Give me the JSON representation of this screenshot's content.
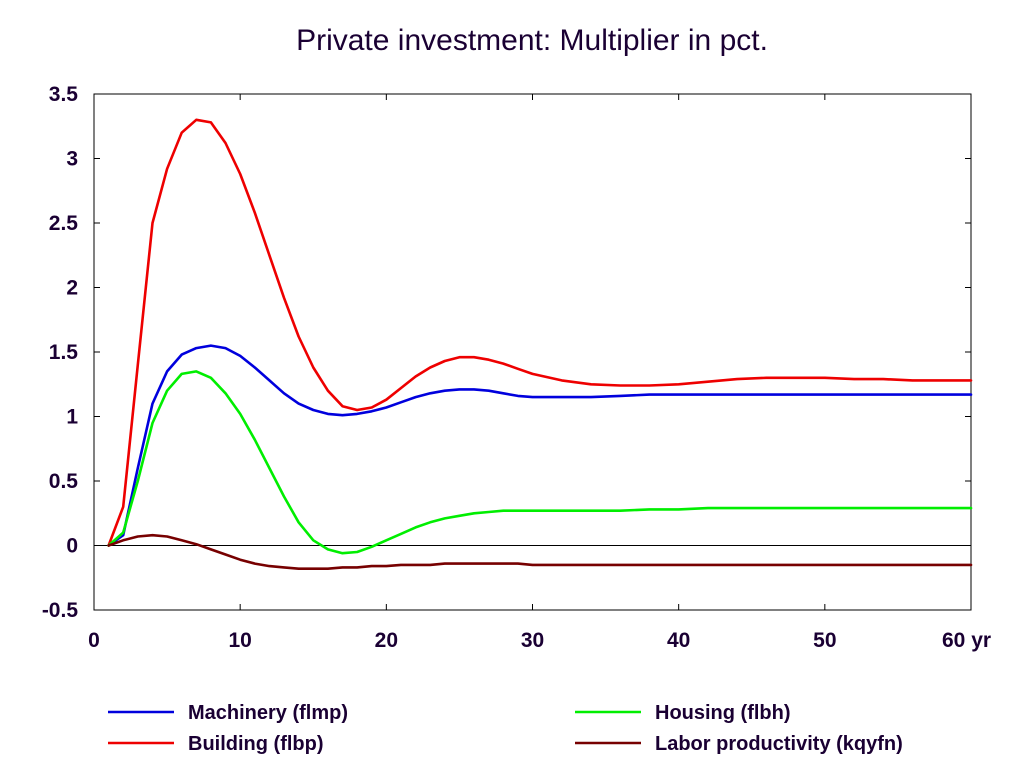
{
  "chart_data": {
    "type": "line",
    "title": "Private investment: Multiplier in pct.",
    "xlabel": "",
    "ylabel": "",
    "xlim": [
      0,
      60
    ],
    "ylim": [
      -0.5,
      3.5
    ],
    "x_ticks": [
      0,
      10,
      20,
      30,
      40,
      50,
      60
    ],
    "x_tick_labels": [
      "0",
      "10",
      "20",
      "30",
      "40",
      "50",
      "60 yr"
    ],
    "y_ticks": [
      -0.5,
      0,
      0.5,
      1,
      1.5,
      2,
      2.5,
      3,
      3.5
    ],
    "y_tick_labels": [
      "-0.5",
      "0",
      "0.5",
      "1",
      "1.5",
      "2",
      "2.5",
      "3",
      "3.5"
    ],
    "grid": false,
    "zero_line": true,
    "legend_position": "bottom",
    "x": [
      1,
      2,
      3,
      4,
      5,
      6,
      7,
      8,
      9,
      10,
      11,
      12,
      13,
      14,
      15,
      16,
      17,
      18,
      19,
      20,
      21,
      22,
      23,
      24,
      25,
      26,
      27,
      28,
      29,
      30,
      32,
      34,
      36,
      38,
      40,
      42,
      44,
      46,
      48,
      50,
      52,
      54,
      56,
      58,
      60
    ],
    "series": [
      {
        "name": "Machinery (flmp)",
        "color": "#0000dd",
        "values": [
          0,
          0.08,
          0.6,
          1.1,
          1.35,
          1.48,
          1.53,
          1.55,
          1.53,
          1.47,
          1.38,
          1.28,
          1.18,
          1.1,
          1.05,
          1.02,
          1.01,
          1.02,
          1.04,
          1.07,
          1.11,
          1.15,
          1.18,
          1.2,
          1.21,
          1.21,
          1.2,
          1.18,
          1.16,
          1.15,
          1.15,
          1.15,
          1.16,
          1.17,
          1.17,
          1.17,
          1.17,
          1.17,
          1.17,
          1.17,
          1.17,
          1.17,
          1.17,
          1.17,
          1.17
        ]
      },
      {
        "name": "Building (flbp)",
        "color": "#ee0000",
        "values": [
          0,
          0.3,
          1.4,
          2.5,
          2.92,
          3.2,
          3.3,
          3.28,
          3.12,
          2.88,
          2.58,
          2.25,
          1.92,
          1.62,
          1.38,
          1.2,
          1.08,
          1.05,
          1.07,
          1.13,
          1.22,
          1.31,
          1.38,
          1.43,
          1.46,
          1.46,
          1.44,
          1.41,
          1.37,
          1.33,
          1.28,
          1.25,
          1.24,
          1.24,
          1.25,
          1.27,
          1.29,
          1.3,
          1.3,
          1.3,
          1.29,
          1.29,
          1.28,
          1.28,
          1.28
        ]
      },
      {
        "name": "Housing (flbh)",
        "color": "#00ee00",
        "values": [
          0,
          0.1,
          0.5,
          0.95,
          1.2,
          1.33,
          1.35,
          1.3,
          1.18,
          1.02,
          0.82,
          0.6,
          0.38,
          0.18,
          0.04,
          -0.03,
          -0.06,
          -0.05,
          -0.01,
          0.04,
          0.09,
          0.14,
          0.18,
          0.21,
          0.23,
          0.25,
          0.26,
          0.27,
          0.27,
          0.27,
          0.27,
          0.27,
          0.27,
          0.28,
          0.28,
          0.29,
          0.29,
          0.29,
          0.29,
          0.29,
          0.29,
          0.29,
          0.29,
          0.29,
          0.29
        ]
      },
      {
        "name": "Labor productivity (kqyfn)",
        "color": "#770000",
        "values": [
          0,
          0.04,
          0.07,
          0.08,
          0.07,
          0.04,
          0.01,
          -0.03,
          -0.07,
          -0.11,
          -0.14,
          -0.16,
          -0.17,
          -0.18,
          -0.18,
          -0.18,
          -0.17,
          -0.17,
          -0.16,
          -0.16,
          -0.15,
          -0.15,
          -0.15,
          -0.14,
          -0.14,
          -0.14,
          -0.14,
          -0.14,
          -0.14,
          -0.15,
          -0.15,
          -0.15,
          -0.15,
          -0.15,
          -0.15,
          -0.15,
          -0.15,
          -0.15,
          -0.15,
          -0.15,
          -0.15,
          -0.15,
          -0.15,
          -0.15,
          -0.15
        ]
      }
    ]
  }
}
